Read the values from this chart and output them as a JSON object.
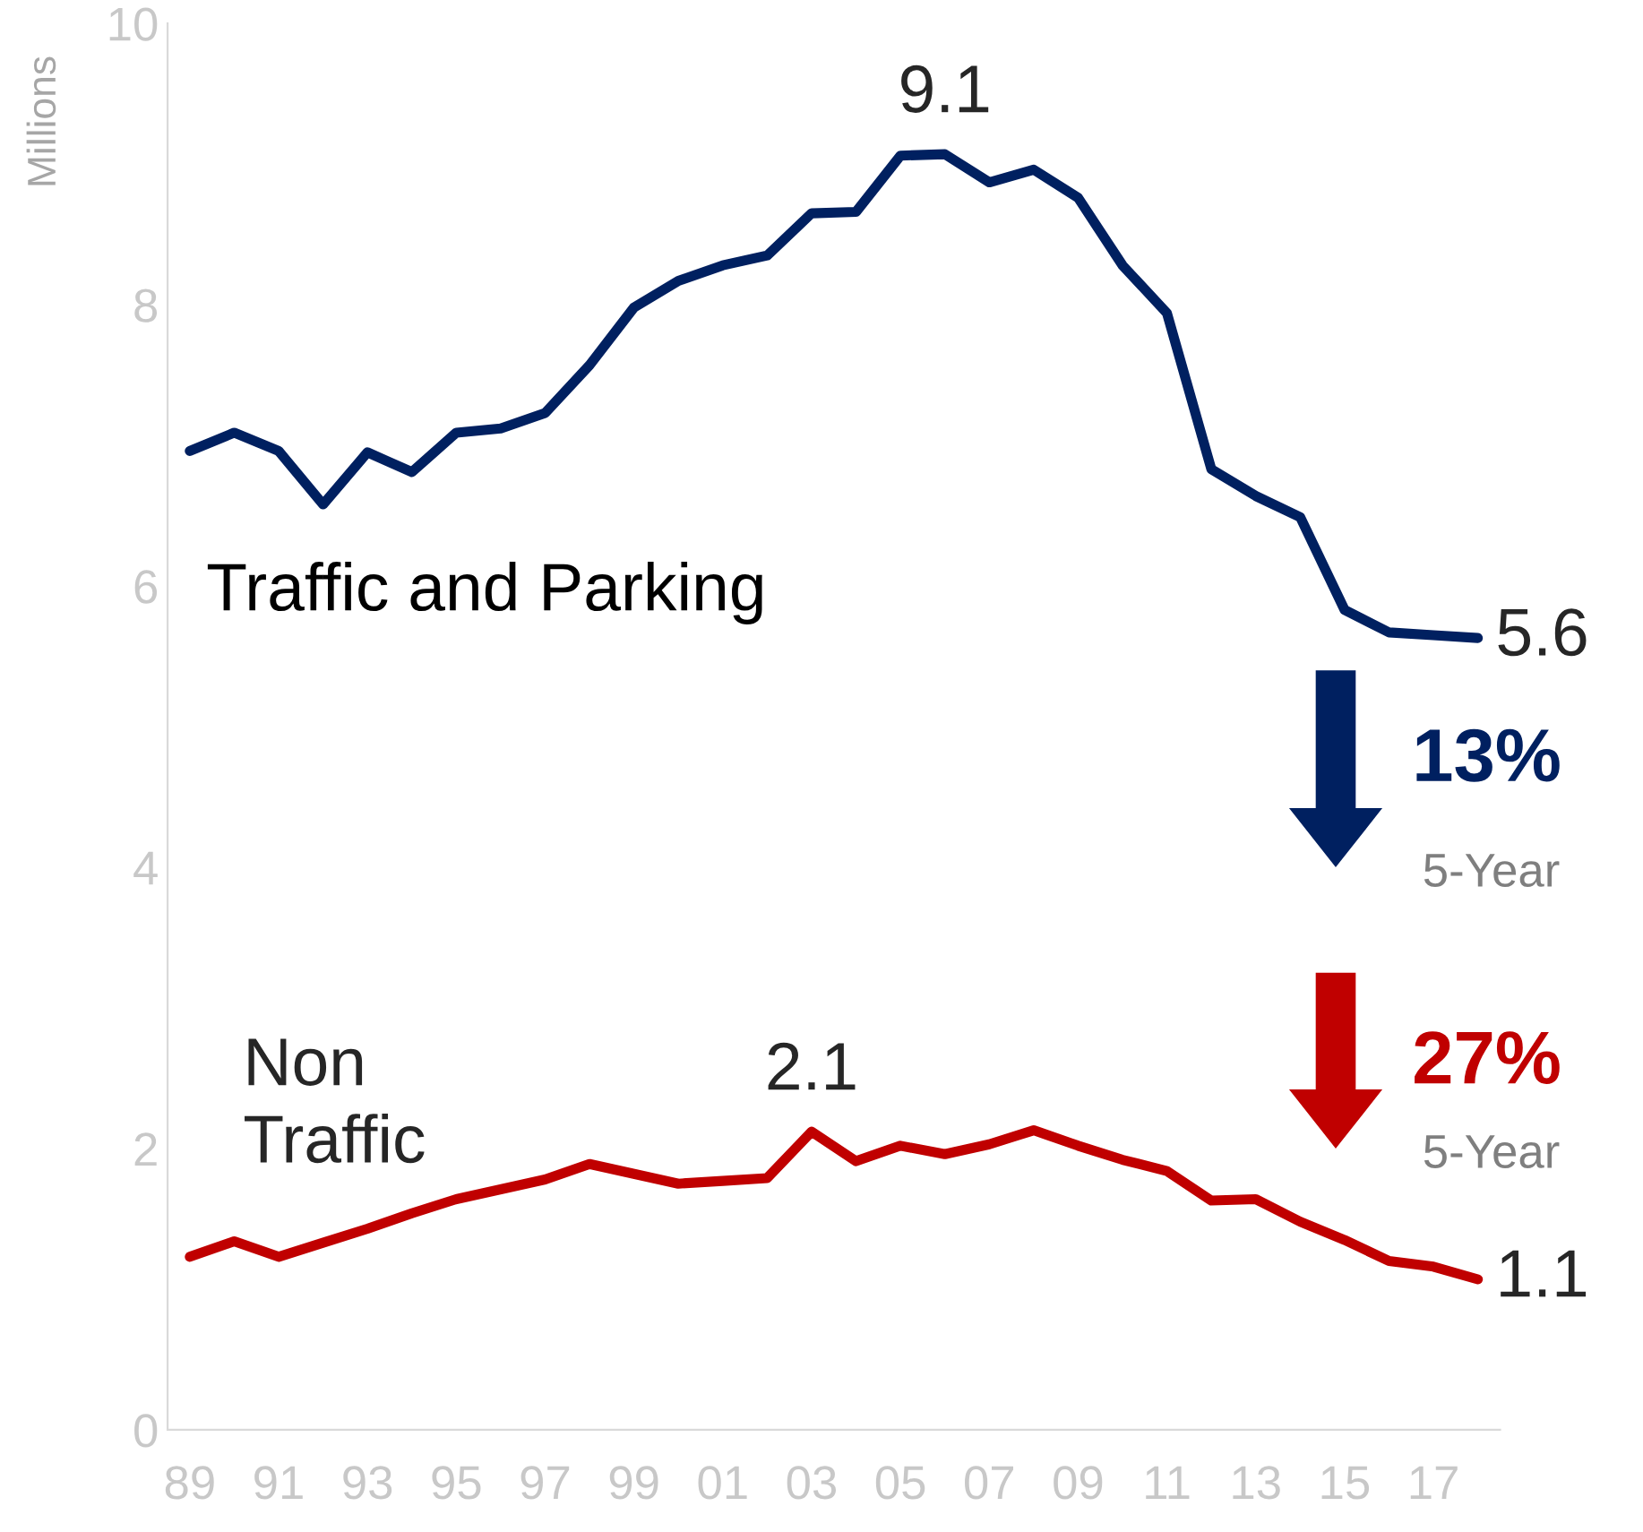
{
  "chart_data": {
    "type": "line",
    "categories": [
      "89",
      null,
      "91",
      null,
      "93",
      null,
      "95",
      null,
      "97",
      null,
      "99",
      null,
      "01",
      null,
      "03",
      null,
      "05",
      null,
      "07",
      null,
      "09",
      null,
      "11",
      null,
      "13",
      null,
      "15",
      null,
      "17",
      null
    ],
    "ylabel": "Millions",
    "ylim": [
      0,
      10
    ],
    "yticks": [
      0,
      2,
      4,
      6,
      8,
      10
    ],
    "grid": false,
    "legend": false,
    "marker": "none",
    "line_style": "solid",
    "series": [
      {
        "name": "Traffic and Parking",
        "color": "#002060",
        "values": [
          6.96,
          7.09,
          6.96,
          6.58,
          6.95,
          6.81,
          7.09,
          7.12,
          7.23,
          7.57,
          7.98,
          8.17,
          8.28,
          8.35,
          8.65,
          8.66,
          9.06,
          9.07,
          8.87,
          8.96,
          8.76,
          8.28,
          7.94,
          6.83,
          6.64,
          6.49,
          5.83,
          5.67,
          5.65,
          5.63
        ]
      },
      {
        "name": "Non Traffic",
        "color": "#c00000",
        "values": [
          1.23,
          1.34,
          1.23,
          1.33,
          1.43,
          1.54,
          1.64,
          1.71,
          1.78,
          1.89,
          1.82,
          1.75,
          1.77,
          1.79,
          2.12,
          1.91,
          2.02,
          1.96,
          2.03,
          2.13,
          2.02,
          1.92,
          1.84,
          1.63,
          1.64,
          1.48,
          1.35,
          1.2,
          1.16,
          1.07
        ]
      }
    ],
    "annotations": [
      {
        "text": "9.1",
        "y": 9.07
      },
      "5.6",
      {
        "text": "2.1",
        "x": "03",
        "y": 2.12
      },
      "1.1",
      "13%",
      "5-Year",
      "27%",
      "5-Year"
    ]
  }
}
